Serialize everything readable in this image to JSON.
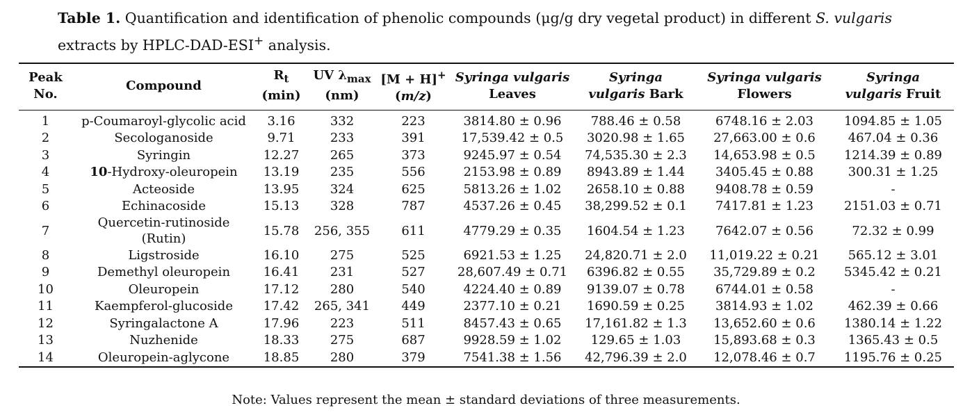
{
  "caption": {
    "label": "Table 1.",
    "text_before_italic": " Quantification and identification of phenolic compounds (μg/g dry vegetal product) in different ",
    "italic": "S. vulgaris",
    "text_after_italic": " extracts by HPLC-DAD-ESI",
    "superscript": "+",
    "text_end": " analysis."
  },
  "headers": {
    "peak": "Peak No.",
    "compound": "Compound",
    "rt_main": "R",
    "rt_sub": "t",
    "rt_unit": "(min)",
    "uv_main": "UV λ",
    "uv_sub": "max",
    "uv_unit": "(nm)",
    "mh_main": "[M + H]",
    "mh_sup": "+",
    "mh_unit_open": "(",
    "mh_unit_italic": "m/z",
    "mh_unit_close": ")",
    "leaves_italic": "Syringa vulgaris",
    "leaves_plain": "Leaves",
    "bark_italic_1": "Syringa",
    "bark_italic_2": "vulgaris",
    "bark_plain": " Bark",
    "flowers_italic": "Syringa vulgaris",
    "flowers_plain": "Flowers",
    "fruit_italic_1": "Syringa",
    "fruit_italic_2": "vulgaris",
    "fruit_plain": " Fruit"
  },
  "rows": [
    {
      "peak": "1",
      "compound": "p-Coumaroyl-glycolic acid",
      "rt": "3.16",
      "uv": "332",
      "mz": "223",
      "leaves": "3814.80 ± 0.96",
      "bark": "788.46 ± 0.58",
      "flowers": "6748.16 ± 2.03",
      "fruit": "1094.85 ± 1.05"
    },
    {
      "peak": "2",
      "compound": "Secologanoside",
      "rt": "9.71",
      "uv": "233",
      "mz": "391",
      "leaves": "17,539.42 ± 0.5",
      "bark": "3020.98 ± 1.65",
      "flowers": "27,663.00 ± 0.6",
      "fruit": "467.04 ± 0.36"
    },
    {
      "peak": "3",
      "compound": "Syringin",
      "rt": "12.27",
      "uv": "265",
      "mz": "373",
      "leaves": "9245.97 ± 0.54",
      "bark": "74,535.30 ± 2.3",
      "flowers": "14,653.98 ± 0.5",
      "fruit": "1214.39 ± 0.89"
    },
    {
      "peak": "4",
      "compound_bold": "10",
      "compound": "-Hydroxy-oleuropein",
      "rt": "13.19",
      "uv": "235",
      "mz": "556",
      "leaves": "2153.98 ± 0.89",
      "bark": "8943.89 ± 1.44",
      "flowers": "3405.45 ± 0.88",
      "fruit": "300.31 ± 1.25"
    },
    {
      "peak": "5",
      "compound": "Acteoside",
      "rt": "13.95",
      "uv": "324",
      "mz": "625",
      "leaves": "5813.26 ± 1.02",
      "bark": "2658.10 ± 0.88",
      "flowers": "9408.78 ± 0.59",
      "fruit": "-"
    },
    {
      "peak": "6",
      "compound": "Echinacoside",
      "rt": "15.13",
      "uv": "328",
      "mz": "787",
      "leaves": "4537.26 ± 0.45",
      "bark": "38,299.52 ± 0.1",
      "flowers": "7417.81 ± 1.23",
      "fruit": "2151.03 ± 0.71"
    },
    {
      "peak": "7",
      "compound": "Quercetin-rutinoside (Rutin)",
      "rt": "15.78",
      "uv": "256, 355",
      "mz": "611",
      "leaves": "4779.29 ± 0.35",
      "bark": "1604.54 ± 1.23",
      "flowers": "7642.07 ± 0.56",
      "fruit": "72.32 ± 0.99"
    },
    {
      "peak": "8",
      "compound": "Ligstroside",
      "rt": "16.10",
      "uv": "275",
      "mz": "525",
      "leaves": "6921.53 ± 1.25",
      "bark": "24,820.71 ± 2.0",
      "flowers": "11,019.22 ± 0.21",
      "fruit": "565.12 ± 3.01"
    },
    {
      "peak": "9",
      "compound": "Demethyl oleuropein",
      "rt": "16.41",
      "uv": "231",
      "mz": "527",
      "leaves": "28,607.49 ± 0.71",
      "bark": "6396.82 ± 0.55",
      "flowers": "35,729.89 ± 0.2",
      "fruit": "5345.42 ± 0.21"
    },
    {
      "peak": "10",
      "compound": "Oleuropein",
      "rt": "17.12",
      "uv": "280",
      "mz": "540",
      "leaves": "4224.40 ± 0.89",
      "bark": "9139.07 ± 0.78",
      "flowers": "6744.01 ± 0.58",
      "fruit": "-"
    },
    {
      "peak": "11",
      "compound": "Kaempferol-glucoside",
      "rt": "17.42",
      "uv": "265, 341",
      "mz": "449",
      "leaves": "2377.10 ± 0.21",
      "bark": "1690.59 ± 0.25",
      "flowers": "3814.93 ± 1.02",
      "fruit": "462.39 ± 0.66"
    },
    {
      "peak": "12",
      "compound": "Syringalactone A",
      "rt": "17.96",
      "uv": "223",
      "mz": "511",
      "leaves": "8457.43 ± 0.65",
      "bark": "17,161.82 ± 1.3",
      "flowers": "13,652.60 ± 0.6",
      "fruit": "1380.14 ± 1.22"
    },
    {
      "peak": "13",
      "compound": "Nuzhenide",
      "rt": "18.33",
      "uv": "275",
      "mz": "687",
      "leaves": "9928.59 ± 1.02",
      "bark": "129.65 ± 1.03",
      "flowers": "15,893.68 ± 0.3",
      "fruit": "1365.43 ± 0.5"
    },
    {
      "peak": "14",
      "compound": "Oleuropein-aglycone",
      "rt": "18.85",
      "uv": "280",
      "mz": "379",
      "leaves": "7541.38 ± 1.56",
      "bark": "42,796.39 ± 2.0",
      "flowers": "12,078.46 ± 0.7",
      "fruit": "1195.76 ± 0.25"
    }
  ],
  "note": "Note: Values represent the mean ± standard deviations of three measurements."
}
